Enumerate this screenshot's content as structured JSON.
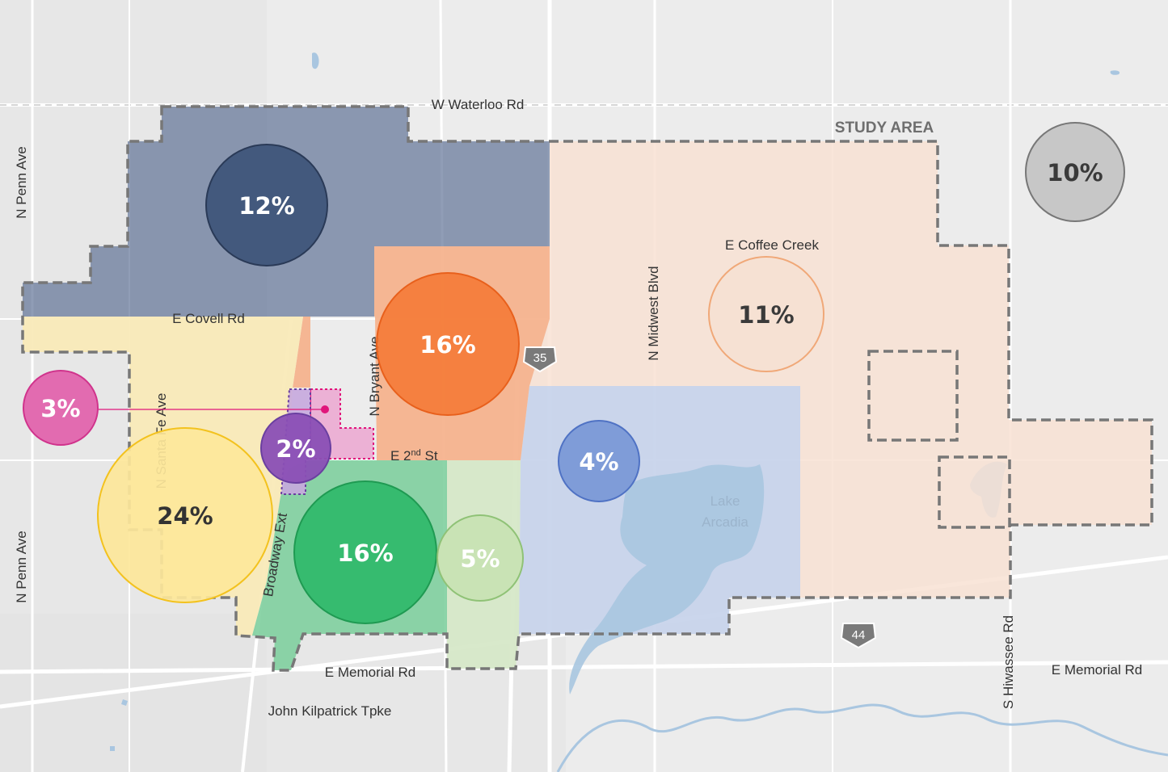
{
  "map": {
    "study_area_label": "STUDY AREA",
    "lake_label_line1": "Lake",
    "lake_label_line2": "Arcadia",
    "roads": {
      "w_waterloo": "W Waterloo Rd",
      "n_penn_top": "N Penn Ave",
      "n_penn_bottom": "N Penn Ave",
      "e_covell": "E Covell Rd",
      "n_santa_fe": "N Santa Fe Ave",
      "n_bryant": "N Bryant Ave",
      "broadway_ext": "Broadway Ext",
      "e_2nd": "E 2",
      "e_2nd_sup": "nd",
      "e_2nd_suffix": " St",
      "n_midwest": "N Midwest Blvd",
      "e_coffee_creek": "E Coffee Creek",
      "e_memorial_left": "E Memorial Rd",
      "e_memorial_right": "E Memorial Rd",
      "john_kilpatrick": "John Kilpatrick Tpke",
      "s_hiwassee": "S Hiwassee Rd"
    },
    "shields": {
      "route_35": "35",
      "route_44": "44"
    },
    "zones": [
      {
        "id": "north",
        "percent": "12%",
        "color": "#3d5478"
      },
      {
        "id": "central-orange",
        "percent": "16%",
        "color": "#f47d3b"
      },
      {
        "id": "east",
        "percent": "11%",
        "color": "#f6e1d3"
      },
      {
        "id": "outside",
        "percent": "10%",
        "color": "#c7c7c7"
      },
      {
        "id": "downtown-pink",
        "percent": "3%",
        "color": "#e26bb0"
      },
      {
        "id": "purple",
        "percent": "2%",
        "color": "#8a4fb5"
      },
      {
        "id": "southwest-yellow",
        "percent": "24%",
        "color": "#fde79a"
      },
      {
        "id": "south-green",
        "percent": "16%",
        "color": "#2fb86a"
      },
      {
        "id": "light-green",
        "percent": "5%",
        "color": "#c9e3b5"
      },
      {
        "id": "blue-lake",
        "percent": "4%",
        "color": "#7f9cd8"
      }
    ]
  }
}
